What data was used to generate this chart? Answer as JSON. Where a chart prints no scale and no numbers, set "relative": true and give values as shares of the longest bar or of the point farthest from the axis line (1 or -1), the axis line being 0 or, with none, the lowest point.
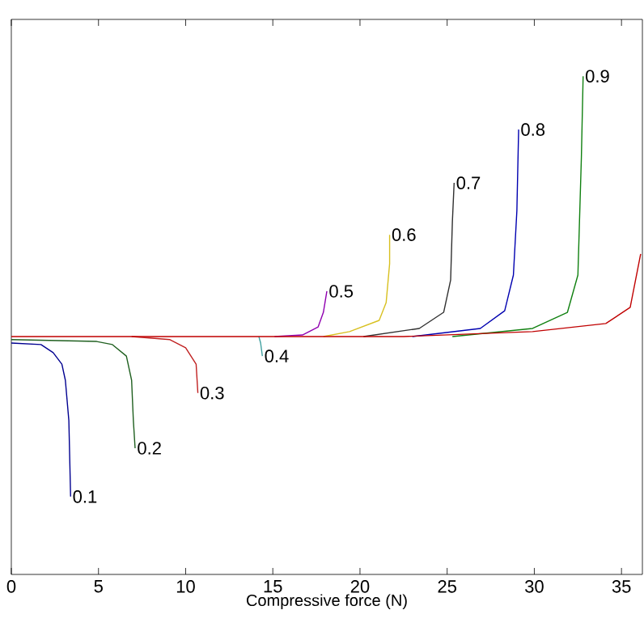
{
  "chart_data": {
    "type": "line",
    "xlabel": "Compressive force (N)",
    "relative": true,
    "xlim": [
      0,
      36.2
    ],
    "xticks": [
      0,
      5,
      10,
      15,
      20,
      25,
      30,
      35
    ],
    "grid": false,
    "legend": false,
    "marker": "none",
    "line_style": "solid",
    "series": [
      {
        "name": "0.1",
        "color": "#000090",
        "x": [
          0,
          1.7,
          2.4,
          2.9,
          3.1,
          3.3,
          3.4
        ],
        "values": [
          -0.025,
          -0.031,
          -0.062,
          -0.106,
          -0.168,
          -0.323,
          -0.615
        ]
      },
      {
        "name": "0.2",
        "color": "#206020",
        "x": [
          0,
          4.9,
          5.8,
          6.6,
          6.9,
          7.0,
          7.1
        ],
        "values": [
          -0.012,
          -0.019,
          -0.031,
          -0.075,
          -0.168,
          -0.323,
          -0.429
        ]
      },
      {
        "name": "0.3",
        "color": "#c02020",
        "x": [
          6.9,
          9.1,
          10.0,
          10.6,
          10.7
        ],
        "values": [
          0,
          -0.012,
          -0.043,
          -0.106,
          -0.217
        ]
      },
      {
        "name": "0.4",
        "color": "#40a0a0",
        "x": [
          14.2,
          14.3,
          14.4
        ],
        "values": [
          0,
          -0.025,
          -0.075
        ]
      },
      {
        "name": "0.5",
        "color": "#9000b0",
        "x": [
          15.1,
          16.7,
          17.6,
          17.9,
          18.1
        ],
        "values": [
          0,
          0.006,
          0.037,
          0.093,
          0.174
        ]
      },
      {
        "name": "0.6",
        "color": "#d8c020",
        "x": [
          17.9,
          19.4,
          21.1,
          21.5,
          21.7,
          21.7
        ],
        "values": [
          0,
          0.019,
          0.062,
          0.13,
          0.28,
          0.391
        ]
      },
      {
        "name": "0.7",
        "color": "#303030",
        "x": [
          20.2,
          23.4,
          24.8,
          25.2,
          25.3,
          25.4
        ],
        "values": [
          0,
          0.031,
          0.093,
          0.217,
          0.441,
          0.59
        ]
      },
      {
        "name": "0.8",
        "color": "#0000b0",
        "x": [
          23.0,
          26.9,
          28.3,
          28.8,
          29.0,
          29.1
        ],
        "values": [
          0,
          0.031,
          0.099,
          0.236,
          0.484,
          0.795
        ]
      },
      {
        "name": "0.9",
        "color": "#108010",
        "x": [
          25.3,
          29.9,
          31.9,
          32.5,
          32.7,
          32.8
        ],
        "values": [
          0,
          0.031,
          0.093,
          0.236,
          0.689,
          1.0
        ]
      },
      {
        "color": "#c00000",
        "x": [
          0,
          22.5,
          29.9,
          34.1,
          35.5,
          36.1
        ],
        "values": [
          0,
          0,
          0.019,
          0.05,
          0.112,
          0.317
        ]
      }
    ]
  }
}
